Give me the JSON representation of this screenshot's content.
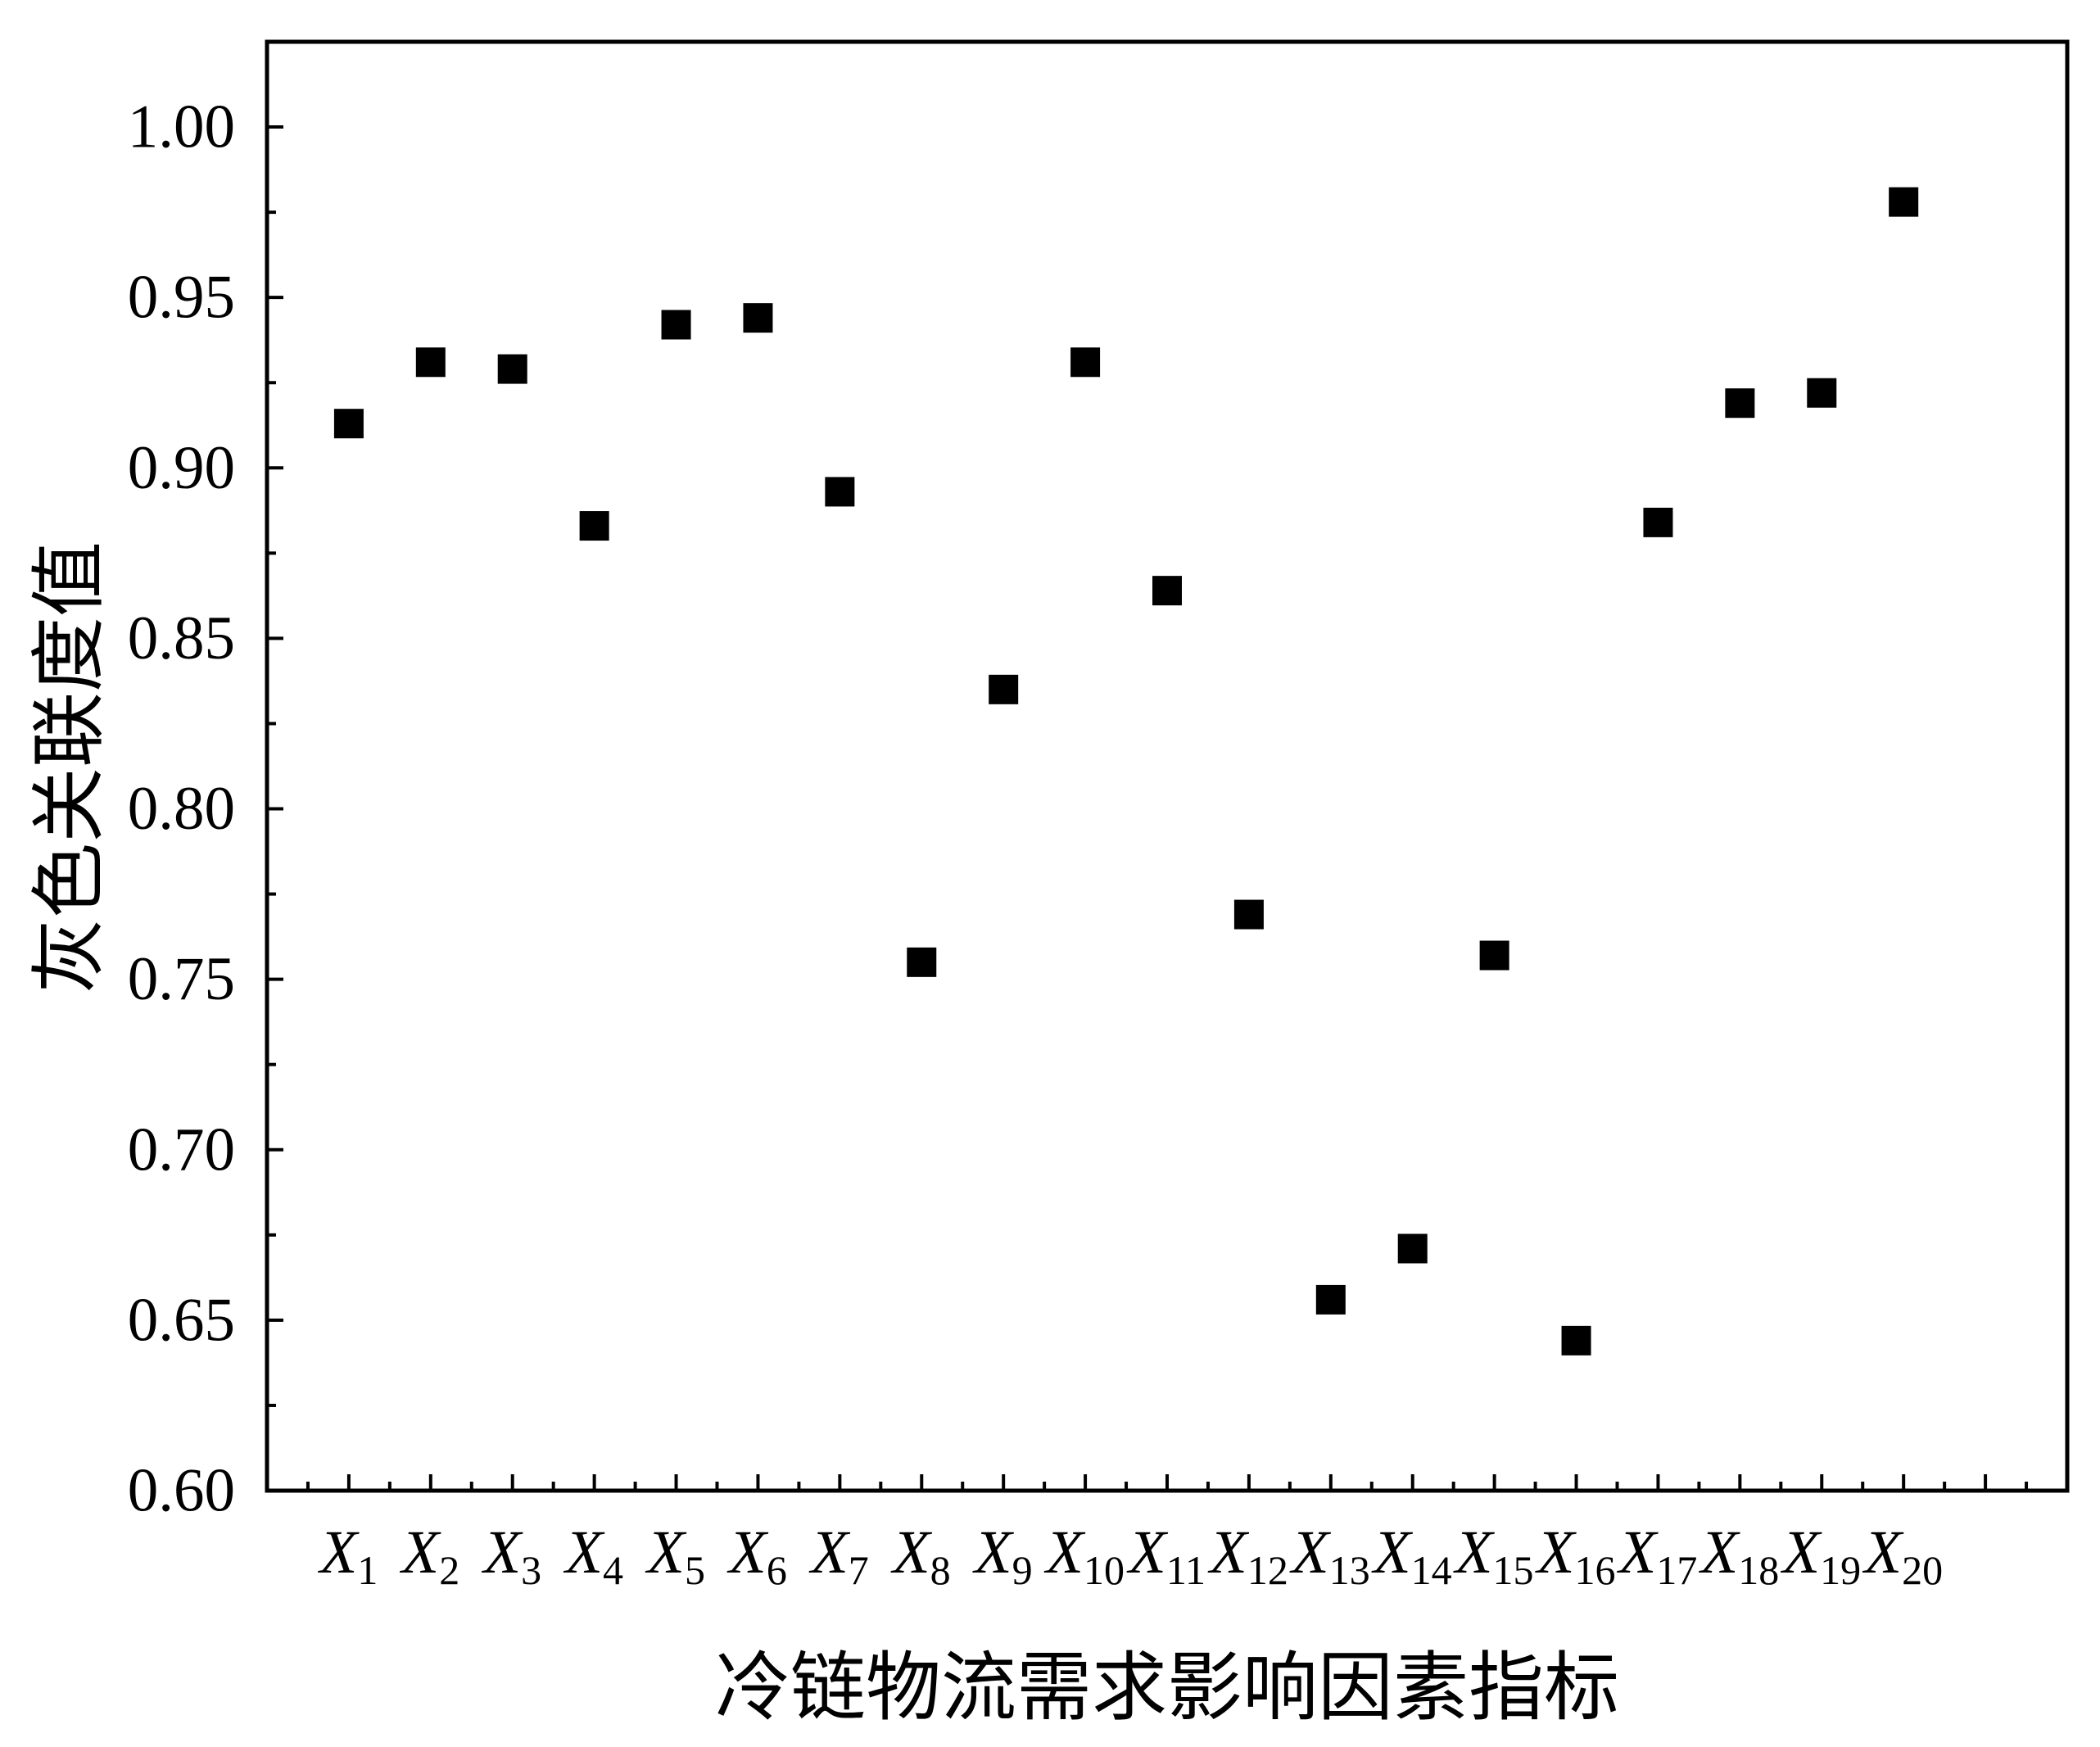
{
  "chart_data": {
    "type": "scatter",
    "categories": [
      "X1",
      "X2",
      "X3",
      "X4",
      "X5",
      "X6",
      "X7",
      "X8",
      "X9",
      "X10",
      "X11",
      "X12",
      "X13",
      "X14",
      "X15",
      "X16",
      "X17",
      "X18",
      "X19",
      "X20"
    ],
    "x": [
      1,
      2,
      3,
      4,
      5,
      6,
      7,
      8,
      9,
      10,
      11,
      12,
      13,
      14,
      15,
      16,
      17,
      18,
      19,
      20
    ],
    "values": [
      0.913,
      0.931,
      0.929,
      0.883,
      0.942,
      0.944,
      0.893,
      0.755,
      0.835,
      0.931,
      0.864,
      0.769,
      0.656,
      0.671,
      0.757,
      0.644,
      0.884,
      0.919,
      0.922,
      0.978
    ],
    "xlabel": "冷链物流需求影响因素指标",
    "ylabel": "灰色关联度值",
    "xlim": [
      0,
      22
    ],
    "ylim": [
      0.6,
      1.025
    ],
    "yticks": [
      0.6,
      0.65,
      0.7,
      0.75,
      0.8,
      0.85,
      0.9,
      0.95,
      1.0
    ],
    "ytick_labels": [
      "0.60",
      "0.65",
      "0.70",
      "0.75",
      "0.80",
      "0.85",
      "0.90",
      "0.95",
      "1.00"
    ],
    "grid": false,
    "marker_color": "#000000"
  }
}
